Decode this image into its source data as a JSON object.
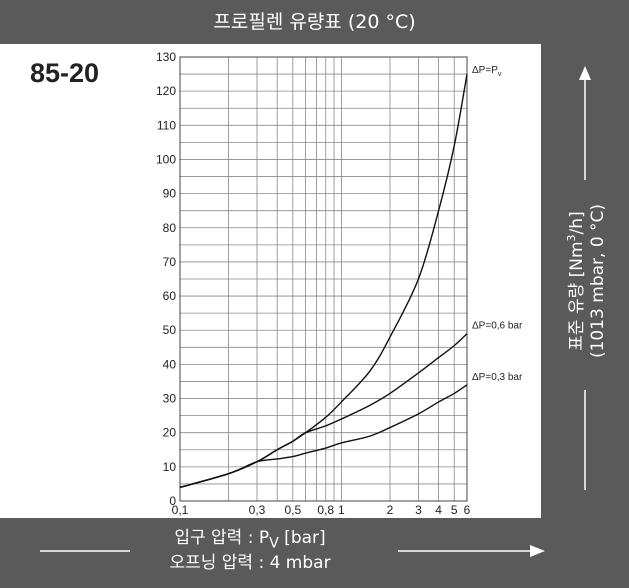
{
  "header": {
    "title": "프로필렌 유량표 (20 °C)"
  },
  "model": "85-20",
  "footer": {
    "line1": "입구 압력 : P",
    "line1_sub": "V",
    "line1_end": " [bar]",
    "line2": "오프닝 압력 : 4 mbar"
  },
  "ylabel": {
    "line1_a": "표준 유량 [Nm",
    "line1_sup": "3",
    "line1_b": "/h]",
    "line2": "(1013 mbar, 0 °C)"
  },
  "colors": {
    "band": "#5a5a5a",
    "text_on_band": "#ffffff",
    "grid": "#888888",
    "curve": "#111111"
  },
  "chart_data": {
    "type": "line",
    "title": "프로필렌 유량표 (20 °C)",
    "xlabel": "입구 압력 : PV [bar]",
    "ylabel": "표준 유량 [Nm3/h] (1013 mbar, 0 °C)",
    "xscale": "log",
    "xlim": [
      0.1,
      6
    ],
    "ylim": [
      0,
      130
    ],
    "grid": true,
    "xtick_labels": [
      "0,1",
      "0,3",
      "0,5",
      "0,8",
      "1",
      "2",
      "3",
      "4",
      "5",
      "6"
    ],
    "xtick_values": [
      0.1,
      0.3,
      0.5,
      0.8,
      1,
      2,
      3,
      4,
      5,
      6
    ],
    "ytick_values": [
      0,
      10,
      20,
      30,
      40,
      50,
      60,
      70,
      80,
      90,
      100,
      110,
      120,
      130
    ],
    "series": [
      {
        "name": "ΔP=Pv",
        "points": [
          [
            0.1,
            4
          ],
          [
            0.2,
            8
          ],
          [
            0.3,
            11.5
          ],
          [
            0.4,
            15
          ],
          [
            0.5,
            17.5
          ],
          [
            0.6,
            20
          ],
          [
            0.8,
            24.5
          ],
          [
            1,
            29
          ],
          [
            1.5,
            38
          ],
          [
            2,
            48
          ],
          [
            3,
            65
          ],
          [
            4,
            85
          ],
          [
            5,
            104
          ],
          [
            6,
            125
          ]
        ]
      },
      {
        "name": "ΔP=0,6 bar",
        "points": [
          [
            0.1,
            4
          ],
          [
            0.2,
            8
          ],
          [
            0.3,
            11.5
          ],
          [
            0.4,
            15
          ],
          [
            0.5,
            17.5
          ],
          [
            0.6,
            20
          ],
          [
            0.8,
            22
          ],
          [
            1,
            24
          ],
          [
            1.5,
            28
          ],
          [
            2,
            31.5
          ],
          [
            3,
            37.5
          ],
          [
            4,
            42
          ],
          [
            5,
            45.5
          ],
          [
            6,
            49
          ]
        ]
      },
      {
        "name": "ΔP=0,3 bar",
        "points": [
          [
            0.1,
            4
          ],
          [
            0.2,
            8
          ],
          [
            0.3,
            11.5
          ],
          [
            0.4,
            12.3
          ],
          [
            0.5,
            13
          ],
          [
            0.6,
            14
          ],
          [
            0.8,
            15.5
          ],
          [
            1,
            17
          ],
          [
            1.5,
            19
          ],
          [
            2,
            21.5
          ],
          [
            3,
            25.5
          ],
          [
            4,
            29
          ],
          [
            5,
            31.5
          ],
          [
            6,
            34
          ]
        ]
      }
    ],
    "series_labels": [
      "ΔP=P",
      "ΔP=0,6 bar",
      "ΔP=0,3 bar"
    ],
    "series_label_sub": "v"
  }
}
